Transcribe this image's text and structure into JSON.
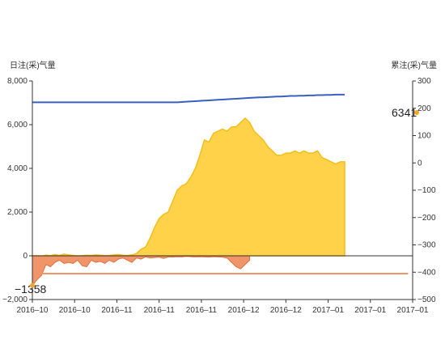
{
  "chart_data": {
    "type": "area",
    "yleft_label": "日注(采)气量",
    "yright_label": "累注(采)气量",
    "yleft_ticks": [
      "8,000",
      "6,000",
      "4,000",
      "2,000",
      "0",
      "−2,000"
    ],
    "yright_ticks": [
      "300",
      "200",
      "100",
      "0",
      "−100",
      "−200",
      "−300",
      "−400",
      "−500"
    ],
    "yleft_range": [
      -2000,
      8000
    ],
    "yright_range": [
      -500,
      300
    ],
    "x_tick_labels": [
      "2016–10",
      "2016–10",
      "2016–11",
      "2016–11",
      "2016–11",
      "2016–12",
      "2016–12",
      "2017–01",
      "2017–01",
      "2017–01"
    ],
    "annotations": {
      "max_label": "6341",
      "min_label": "−1358"
    },
    "colors": {
      "daily_injection": "#FFD24A",
      "daily_injection_stroke": "#F2BE1A",
      "daily_withdrawal": "#F0956A",
      "daily_withdrawal_stroke": "#E0703F",
      "cum_injection": "#3A5FBF",
      "cum_withdrawal": "#F0956A",
      "marker": "#F5A623"
    },
    "series": [
      {
        "role": "daily-injection",
        "axis": "left",
        "values": [
          0,
          10,
          -20,
          30,
          10,
          60,
          20,
          80,
          40,
          20,
          0,
          10,
          30,
          20,
          40,
          30,
          10,
          20,
          40,
          60,
          30,
          20,
          40,
          100,
          300,
          400,
          800,
          1300,
          1700,
          1900,
          2000,
          2500,
          3000,
          3200,
          3300,
          3600,
          4000,
          4600,
          5300,
          5200,
          5600,
          5700,
          5800,
          5700,
          5900,
          5900,
          6100,
          6300,
          6100,
          5700,
          5500,
          5300,
          5000,
          4800,
          4600,
          4600,
          4700,
          4700,
          4800,
          4700,
          4800,
          4700,
          4700,
          4800,
          4500,
          4400,
          4300,
          4200,
          4300,
          4300
        ]
      },
      {
        "role": "daily-withdrawal",
        "axis": "left",
        "values": [
          -1358,
          -1100,
          -900,
          -400,
          -500,
          -300,
          -200,
          -350,
          -300,
          -350,
          -200,
          -450,
          -500,
          -200,
          -300,
          -250,
          -350,
          -200,
          -300,
          -150,
          -100,
          -200,
          -300,
          -100,
          -150,
          -50,
          -100,
          -80,
          -60,
          -120,
          -50,
          -60,
          -40,
          -50,
          -30,
          -40,
          -50,
          -40,
          -50,
          -60,
          -40,
          -50,
          -60,
          -100,
          -300,
          -500,
          -600,
          -400,
          -200
        ]
      },
      {
        "role": "cumulative-injection",
        "axis": "right",
        "values": [
          222,
          222,
          222,
          222,
          222,
          222,
          222,
          222,
          222,
          222,
          222,
          222,
          222,
          222,
          222,
          222,
          222,
          222,
          222,
          222,
          222,
          222,
          222,
          222,
          222,
          222,
          222,
          222,
          222,
          222,
          222,
          222,
          222,
          223,
          224,
          225,
          226,
          227,
          228,
          229,
          230,
          231,
          232,
          233,
          234,
          235,
          236,
          237,
          238,
          239,
          240,
          240,
          241,
          242,
          243,
          243,
          244,
          245,
          245,
          246,
          246,
          247,
          247,
          248,
          248,
          249,
          249,
          250,
          250,
          250
        ]
      },
      {
        "role": "cumulative-withdrawal",
        "axis": "right",
        "values": [
          -405,
          -405,
          -405,
          -405,
          -405,
          -405,
          -405,
          -405,
          -405,
          -405,
          -405,
          -405,
          -405,
          -405,
          -405,
          -405,
          -405,
          -405,
          -405,
          -405,
          -405,
          -405,
          -405,
          -405,
          -405,
          -405,
          -405,
          -405,
          -405,
          -405,
          -405,
          -405,
          -405,
          -405,
          -405,
          -405,
          -405,
          -405,
          -405,
          -405,
          -405,
          -405,
          -405,
          -405,
          -405,
          -405,
          -405,
          -405,
          -405,
          -405,
          -405,
          -405,
          -405,
          -405,
          -405,
          -405,
          -405,
          -405,
          -405,
          -405,
          -405,
          -405,
          -405,
          -405,
          -405,
          -405,
          -405,
          -405,
          -405,
          -405,
          -405,
          -405,
          -405,
          -405,
          -405,
          -405,
          -405,
          -405,
          -405,
          -405,
          -405,
          -405,
          -405,
          -405
        ]
      }
    ]
  }
}
